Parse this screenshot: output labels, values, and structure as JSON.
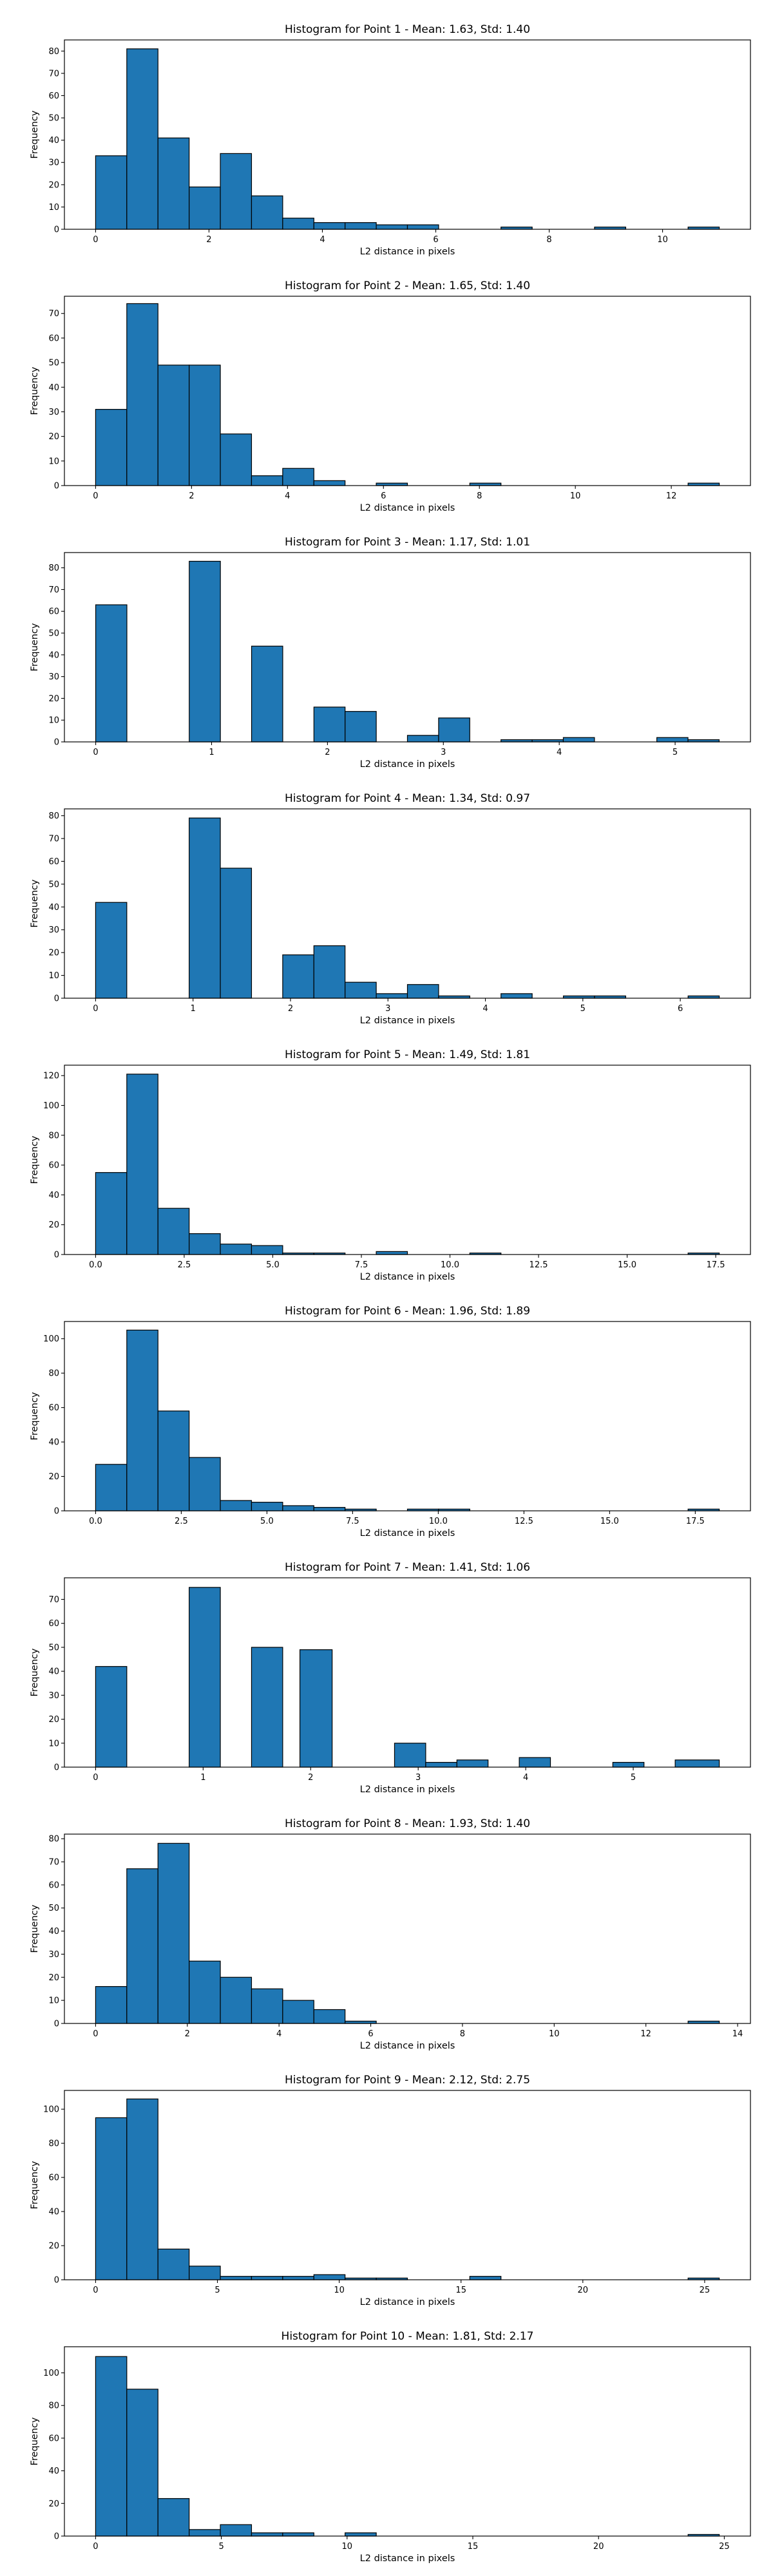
{
  "chart_data": [
    {
      "type": "bar",
      "title": "Histogram for Point 1 - Mean: 1.63, Std: 1.40",
      "xlabel": "L2 distance in pixels",
      "ylabel": "Frequency",
      "xlim": [
        -0.55,
        11.55
      ],
      "ylim": [
        0,
        85
      ],
      "xticks": [
        0,
        2,
        4,
        6,
        8,
        10
      ],
      "yticks": [
        0,
        10,
        20,
        30,
        40,
        50,
        60,
        70,
        80
      ],
      "bin_edges": [
        0,
        0.55,
        1.1,
        1.65,
        2.2,
        2.75,
        3.3,
        3.85,
        4.4,
        4.95,
        5.5,
        6.05,
        6.6,
        7.15,
        7.7,
        8.25,
        8.8,
        9.35,
        9.9,
        10.45,
        11.0
      ],
      "values": [
        33,
        81,
        41,
        19,
        34,
        15,
        5,
        3,
        3,
        2,
        2,
        0,
        0,
        1,
        0,
        0,
        1,
        0,
        0,
        1
      ],
      "grid": false,
      "legend": "none"
    },
    {
      "type": "bar",
      "title": "Histogram for Point 2 - Mean: 1.65, Std: 1.40",
      "xlabel": "L2 distance in pixels",
      "ylabel": "Frequency",
      "xlim": [
        -0.65,
        13.65
      ],
      "ylim": [
        0,
        77
      ],
      "xticks": [
        0,
        2,
        4,
        6,
        8,
        10,
        12
      ],
      "yticks": [
        0,
        10,
        20,
        30,
        40,
        50,
        60,
        70
      ],
      "bin_edges": [
        0,
        0.65,
        1.3,
        1.95,
        2.6,
        3.25,
        3.9,
        4.55,
        5.2,
        5.85,
        6.5,
        7.15,
        7.8,
        8.45,
        9.1,
        9.75,
        10.4,
        11.05,
        11.7,
        12.35,
        13.0
      ],
      "values": [
        31,
        74,
        49,
        49,
        21,
        4,
        7,
        2,
        0,
        1,
        0,
        0,
        1,
        0,
        0,
        0,
        0,
        0,
        0,
        1
      ],
      "grid": false,
      "legend": "none"
    },
    {
      "type": "bar",
      "title": "Histogram for Point 3 - Mean: 1.17, Std: 1.01",
      "xlabel": "L2 distance in pixels",
      "ylabel": "Frequency",
      "xlim": [
        -0.27,
        5.65
      ],
      "ylim": [
        0,
        87
      ],
      "xticks": [
        0,
        1,
        2,
        3,
        4,
        5
      ],
      "yticks": [
        0,
        10,
        20,
        30,
        40,
        50,
        60,
        70,
        80
      ],
      "bin_edges": [
        0,
        0.269,
        0.538,
        0.807,
        1.076,
        1.345,
        1.614,
        1.883,
        2.152,
        2.421,
        2.69,
        2.959,
        3.228,
        3.497,
        3.766,
        4.035,
        4.304,
        4.573,
        4.842,
        5.111,
        5.38
      ],
      "values": [
        63,
        0,
        0,
        83,
        0,
        44,
        0,
        16,
        14,
        0,
        3,
        11,
        0,
        1,
        1,
        2,
        0,
        0,
        2,
        1
      ],
      "grid": false,
      "legend": "none"
    },
    {
      "type": "bar",
      "title": "Histogram for Point 4 - Mean: 1.34, Std: 0.97",
      "xlabel": "L2 distance in pixels",
      "ylabel": "Frequency",
      "xlim": [
        -0.32,
        6.72
      ],
      "ylim": [
        0,
        83
      ],
      "xticks": [
        0,
        1,
        2,
        3,
        4,
        5,
        6
      ],
      "yticks": [
        0,
        10,
        20,
        30,
        40,
        50,
        60,
        70,
        80
      ],
      "bin_edges": [
        0,
        0.32,
        0.64,
        0.96,
        1.28,
        1.6,
        1.92,
        2.24,
        2.56,
        2.88,
        3.2,
        3.52,
        3.84,
        4.16,
        4.48,
        4.8,
        5.12,
        5.44,
        5.76,
        6.08,
        6.4
      ],
      "values": [
        42,
        0,
        0,
        79,
        57,
        0,
        19,
        23,
        7,
        2,
        6,
        1,
        0,
        2,
        0,
        1,
        1,
        0,
        0,
        1
      ],
      "grid": false,
      "legend": "none"
    },
    {
      "type": "bar",
      "title": "Histogram for Point 5 - Mean: 1.49, Std: 1.81",
      "xlabel": "L2 distance in pixels",
      "ylabel": "Frequency",
      "xlim": [
        -0.88,
        18.48
      ],
      "ylim": [
        0,
        127
      ],
      "xticks": [
        0,
        2.5,
        5,
        7.5,
        10,
        12.5,
        15,
        17.5
      ],
      "xtick_labels": [
        "0.0",
        "2.5",
        "5.0",
        "7.5",
        "10.0",
        "12.5",
        "15.0",
        "17.5"
      ],
      "yticks": [
        0,
        20,
        40,
        60,
        80,
        100,
        120
      ],
      "bin_edges": [
        0,
        0.88,
        1.76,
        2.64,
        3.52,
        4.4,
        5.28,
        6.16,
        7.04,
        7.92,
        8.8,
        9.68,
        10.56,
        11.44,
        12.32,
        13.2,
        14.08,
        14.96,
        15.84,
        16.72,
        17.6
      ],
      "values": [
        55,
        121,
        31,
        14,
        7,
        6,
        1,
        1,
        0,
        2,
        0,
        0,
        1,
        0,
        0,
        0,
        0,
        0,
        0,
        1
      ],
      "grid": false,
      "legend": "none"
    },
    {
      "type": "bar",
      "title": "Histogram for Point 6 - Mean: 1.96, Std: 1.89",
      "xlabel": "L2 distance in pixels",
      "ylabel": "Frequency",
      "xlim": [
        -0.91,
        19.11
      ],
      "ylim": [
        0,
        110
      ],
      "xticks": [
        0,
        2.5,
        5,
        7.5,
        10,
        12.5,
        15,
        17.5
      ],
      "xtick_labels": [
        "0.0",
        "2.5",
        "5.0",
        "7.5",
        "10.0",
        "12.5",
        "15.0",
        "17.5"
      ],
      "yticks": [
        0,
        20,
        40,
        60,
        80,
        100
      ],
      "bin_edges": [
        0,
        0.91,
        1.82,
        2.73,
        3.64,
        4.55,
        5.46,
        6.37,
        7.28,
        8.19,
        9.1,
        10.01,
        10.92,
        11.83,
        12.74,
        13.65,
        14.56,
        15.47,
        16.38,
        17.29,
        18.2
      ],
      "values": [
        27,
        105,
        58,
        31,
        6,
        5,
        3,
        2,
        1,
        0,
        1,
        1,
        0,
        0,
        0,
        0,
        0,
        0,
        0,
        1
      ],
      "grid": false,
      "legend": "none"
    },
    {
      "type": "bar",
      "title": "Histogram for Point 7 - Mean: 1.41, Std: 1.06",
      "xlabel": "L2 distance in pixels",
      "ylabel": "Frequency",
      "xlim": [
        -0.29,
        6.09
      ],
      "ylim": [
        0,
        79
      ],
      "xticks": [
        0,
        1,
        2,
        3,
        4,
        5
      ],
      "yticks": [
        0,
        10,
        20,
        30,
        40,
        50,
        60,
        70
      ],
      "bin_edges": [
        0,
        0.29,
        0.58,
        0.87,
        1.16,
        1.45,
        1.74,
        1.9,
        2.2,
        2.49,
        2.78,
        3.07,
        3.36,
        3.65,
        3.94,
        4.23,
        4.52,
        4.81,
        5.1,
        5.39,
        5.8
      ],
      "values": [
        42,
        0,
        0,
        75,
        0,
        50,
        0,
        49,
        0,
        0,
        10,
        2,
        3,
        0,
        4,
        0,
        0,
        2,
        0,
        3
      ],
      "grid": false,
      "legend": "none"
    },
    {
      "type": "bar",
      "title": "Histogram for Point 8 - Mean: 1.93, Std: 1.40",
      "xlabel": "L2 distance in pixels",
      "ylabel": "Frequency",
      "xlim": [
        -0.68,
        14.28
      ],
      "ylim": [
        0,
        82
      ],
      "xticks": [
        0,
        2,
        4,
        6,
        8,
        10,
        12,
        14
      ],
      "yticks": [
        0,
        10,
        20,
        30,
        40,
        50,
        60,
        70,
        80
      ],
      "bin_edges": [
        0,
        0.68,
        1.36,
        2.04,
        2.72,
        3.4,
        4.08,
        4.76,
        5.44,
        6.12,
        6.8,
        7.48,
        8.16,
        8.84,
        9.52,
        10.2,
        10.88,
        11.56,
        12.24,
        12.92,
        13.6
      ],
      "values": [
        16,
        67,
        78,
        27,
        20,
        15,
        10,
        6,
        1,
        0,
        0,
        0,
        0,
        0,
        0,
        0,
        0,
        0,
        0,
        1
      ],
      "grid": false,
      "legend": "none"
    },
    {
      "type": "bar",
      "title": "Histogram for Point 9 - Mean: 2.12, Std: 2.75",
      "xlabel": "L2 distance in pixels",
      "ylabel": "Frequency",
      "xlim": [
        -1.28,
        26.88
      ],
      "ylim": [
        0,
        111
      ],
      "xticks": [
        0,
        5,
        10,
        15,
        20,
        25
      ],
      "yticks": [
        0,
        20,
        40,
        60,
        80,
        100
      ],
      "bin_edges": [
        0,
        1.28,
        2.56,
        3.84,
        5.12,
        6.4,
        7.68,
        8.96,
        10.24,
        11.52,
        12.8,
        14.08,
        15.36,
        16.64,
        17.92,
        19.2,
        20.48,
        21.76,
        23.04,
        24.32,
        25.6
      ],
      "values": [
        95,
        106,
        18,
        8,
        2,
        2,
        2,
        3,
        1,
        1,
        0,
        0,
        2,
        0,
        0,
        0,
        0,
        0,
        0,
        1
      ],
      "grid": false,
      "legend": "none"
    },
    {
      "type": "bar",
      "title": "Histogram for Point 10 - Mean: 1.81, Std: 2.17",
      "xlabel": "L2 distance in pixels",
      "ylabel": "Frequency",
      "xlim": [
        -1.24,
        26.04
      ],
      "ylim": [
        0,
        116
      ],
      "xticks": [
        0,
        5,
        10,
        15,
        20,
        25
      ],
      "yticks": [
        0,
        20,
        40,
        60,
        80,
        100
      ],
      "bin_edges": [
        0,
        1.24,
        2.48,
        3.72,
        4.96,
        6.2,
        7.44,
        8.68,
        9.92,
        11.16,
        12.4,
        13.64,
        14.88,
        16.12,
        17.36,
        18.6,
        19.84,
        21.08,
        22.32,
        23.56,
        24.8
      ],
      "values": [
        110,
        90,
        23,
        4,
        7,
        2,
        2,
        0,
        2,
        0,
        0,
        0,
        0,
        0,
        0,
        0,
        0,
        0,
        0,
        1
      ],
      "grid": false,
      "legend": "none"
    }
  ]
}
